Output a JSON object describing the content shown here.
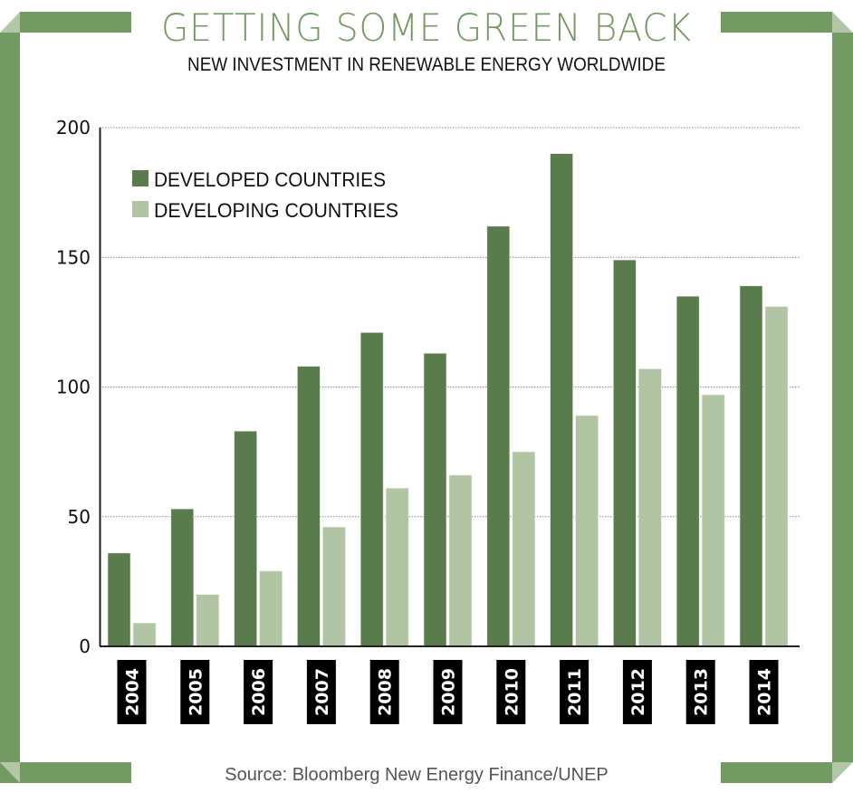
{
  "header": {
    "title": "GETTING SOME GREEN BACK",
    "subtitle": "NEW INVESTMENT IN RENEWABLE ENERGY WORLDWIDE"
  },
  "footer": {
    "source": "Source: Bloomberg New Energy Finance/UNEP"
  },
  "colors": {
    "frame": "#749a63",
    "frame_fold": "#b2c7a6",
    "developed": "#5a7b4c",
    "developing": "#b1c4a4",
    "label_bg": "#000000"
  },
  "chart_data": {
    "type": "bar",
    "title": "GETTING SOME GREEN BACK",
    "subtitle": "NEW INVESTMENT IN RENEWABLE ENERGY WORLDWIDE",
    "xlabel": "",
    "ylabel": "",
    "categories": [
      "2004",
      "2005",
      "2006",
      "2007",
      "2008",
      "2009",
      "2010",
      "2011",
      "2012",
      "2013",
      "2014"
    ],
    "series": [
      {
        "name": "DEVELOPED COUNTRIES",
        "color": "#5a7b4c",
        "values": [
          36,
          53,
          83,
          108,
          121,
          113,
          162,
          190,
          149,
          135,
          139
        ]
      },
      {
        "name": "DEVELOPING  COUNTRIES",
        "color": "#b1c4a4",
        "values": [
          9,
          20,
          29,
          46,
          61,
          66,
          75,
          89,
          107,
          97,
          131
        ]
      }
    ],
    "ylim": [
      0,
      200
    ],
    "yticks": [
      0,
      50,
      100,
      150,
      200
    ],
    "grid": true,
    "legend_position": "top-left",
    "source": "Source: Bloomberg New Energy Finance/UNEP"
  }
}
